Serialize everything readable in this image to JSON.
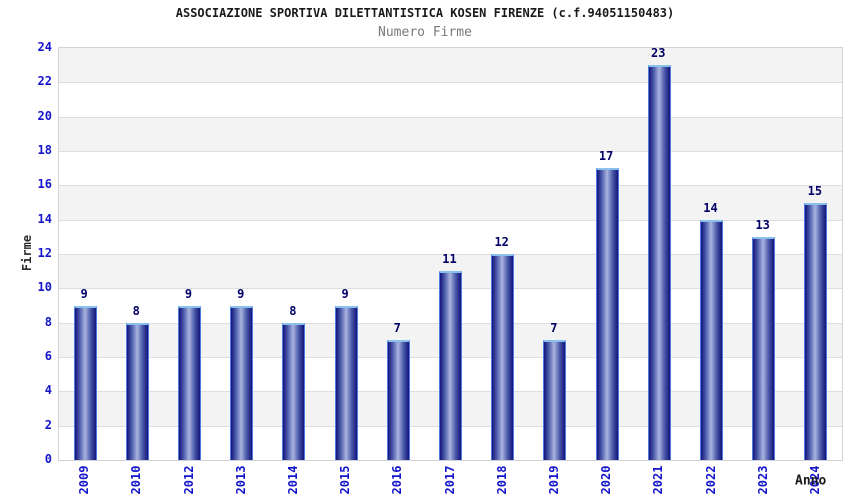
{
  "chart_data": {
    "type": "bar",
    "title": "ASSOCIAZIONE SPORTIVA DILETTANTISTICA KOSEN FIRENZE (c.f.94051150483)",
    "subtitle": "Numero Firme",
    "xlabel": "Anno",
    "ylabel": "Firme",
    "categories": [
      "2009",
      "2010",
      "2012",
      "2013",
      "2014",
      "2015",
      "2016",
      "2017",
      "2018",
      "2019",
      "2020",
      "2021",
      "2022",
      "2023",
      "2024"
    ],
    "values": [
      9,
      8,
      9,
      9,
      8,
      9,
      7,
      11,
      12,
      7,
      17,
      23,
      14,
      13,
      15
    ],
    "ylim": [
      0,
      24
    ],
    "ytick_step": 2,
    "grid": "horizontal alternating bands, gridlines every 2 units",
    "legend": "none",
    "bar_labels_shown": true,
    "x_tick_rotation_deg": 90
  },
  "colors": {
    "bar_dark": "#14147a",
    "bar_mid": "#4a5aaa",
    "bar_light": "#aab4e0",
    "bar_cap": "#8ac0ec",
    "bar_border": "#4d7de0",
    "axis_label_blue": "#1414cc",
    "value_label_navy": "#000066",
    "band_gray": "#f3f3f3",
    "band_white": "#ffffff",
    "grid_line": "#dedede",
    "title_color": "#1a1a1a",
    "subtitle_color": "#7a7a7a"
  }
}
